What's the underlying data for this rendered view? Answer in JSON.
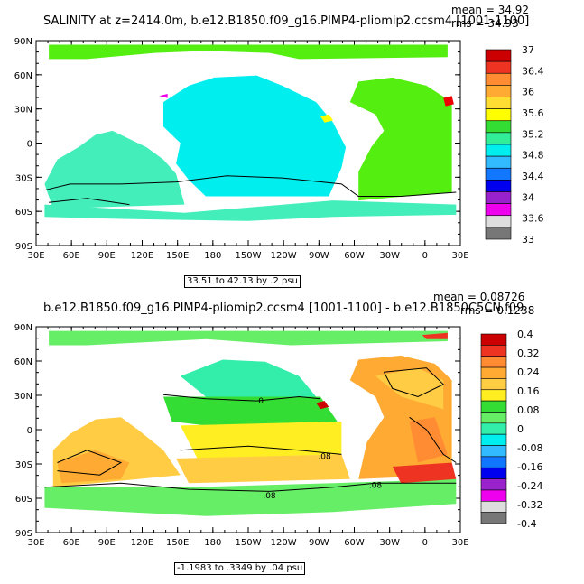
{
  "chart_data": [
    {
      "type": "heatmap",
      "title": "SALINITY at z=2414.0m, b.e12.B1850.f09_g16.PIMP4-pliomip2.ccsm4 [1001-1100]",
      "mean_label": "mean = 34.92",
      "rms_label": "rms = 34.93",
      "range_label": "33.51 to 42.13 by .2 psu",
      "x_ticks": [
        "30E",
        "60E",
        "90E",
        "120E",
        "150E",
        "180",
        "150W",
        "120W",
        "90W",
        "60W",
        "30W",
        "0",
        "30E"
      ],
      "y_ticks": [
        "90N",
        "60N",
        "30N",
        "0",
        "30S",
        "60S",
        "90S"
      ],
      "colorbar_labels": [
        "37",
        "36.4",
        "36",
        "35.6",
        "35.2",
        "34.8",
        "34.4",
        "34",
        "33.6",
        "33"
      ],
      "colorbar_colors": [
        "#cc0000",
        "#ee3322",
        "#ff8c33",
        "#ffaa33",
        "#ffdd33",
        "#ffff00",
        "#33dd33",
        "#33ee99",
        "#00eeee",
        "#33bbff",
        "#1177ff",
        "#0000ee",
        "#9922cc",
        "#ee00ee",
        "#dddddd",
        "#777777"
      ],
      "regions": {
        "pacific": "#00eeee",
        "indian": "#44eebb",
        "atlantic": "#55ee11",
        "southern": "#44eebb",
        "arctic": "#55ee11",
        "med": "#ff2222",
        "red_sea": "#ee0000"
      }
    },
    {
      "type": "heatmap",
      "title": "b.e12.B1850.f09_g16.PIMP4-pliomip2.ccsm4 [1001-1100] - b.e12.B1850C5CN.f09",
      "mean_label": "mean = 0.08726",
      "rms_label": "rms = 0.1238",
      "range_label": "-1.1983 to .3349 by .04 psu",
      "contour_labels": [
        "0",
        ".08",
        ".08",
        ".08"
      ],
      "x_ticks": [
        "30E",
        "60E",
        "90E",
        "120E",
        "150E",
        "180",
        "150W",
        "120W",
        "90W",
        "60W",
        "30W",
        "0",
        "30E"
      ],
      "y_ticks": [
        "90N",
        "60N",
        "30N",
        "0",
        "30S",
        "60S",
        "90S"
      ],
      "colorbar_labels": [
        "0.4",
        "0.32",
        "0.24",
        "0.16",
        "0.08",
        "0",
        "-0.08",
        "-0.16",
        "-0.24",
        "-0.32",
        "-0.4"
      ],
      "colorbar_colors": [
        "#cc0000",
        "#ee3322",
        "#ff8c33",
        "#ffaa33",
        "#ffcc44",
        "#ffee22",
        "#33dd33",
        "#66ee66",
        "#33eeaa",
        "#00eeee",
        "#33bbff",
        "#1177ff",
        "#0000ee",
        "#9922cc",
        "#ee00ee",
        "#dddddd",
        "#777777"
      ]
    }
  ]
}
